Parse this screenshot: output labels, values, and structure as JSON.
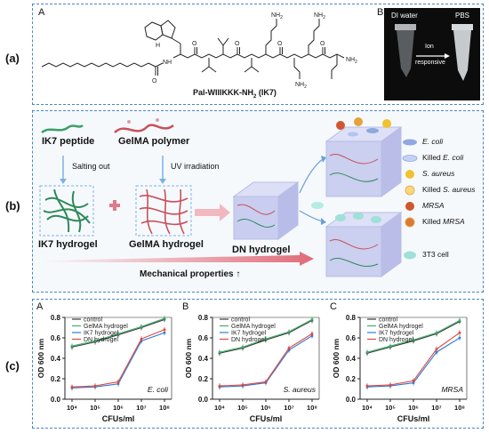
{
  "labels": {
    "a": "(a)",
    "b": "(b)",
    "c": "(c)",
    "A": "A",
    "B": "B",
    "C": "C"
  },
  "panel_a": {
    "sub_a": "A",
    "sub_b": "B",
    "peptide_name": "Pal-WIIIKKK-NH",
    "peptide_sub": "2",
    "peptide_code": " (IK7)",
    "photo_left": "DI water",
    "photo_right": "PBS",
    "arrow_top": "Ion",
    "arrow_bottom": "responsive",
    "atoms": {
      "nh": "NH",
      "h": "H",
      "n": "N",
      "o": "O",
      "nh2": "NH",
      "nh2_sub": "2"
    }
  },
  "panel_b": {
    "ik7_peptide": "IK7 peptide",
    "gelma_polymer": "GelMA polymer",
    "salting_out": "Salting out",
    "uv": "UV irradiation",
    "ik7_hydrogel": "IK7 hydrogel",
    "gelma_hydrogel": "GelMA hydrogel",
    "dn_hydrogel": "DN hydrogel",
    "mechanical": "Mechanical properties ↑",
    "legend": [
      {
        "label": "E. coli",
        "italic": true
      },
      {
        "prefix": "Killed ",
        "label": "E. coli",
        "italic": true
      },
      {
        "label": "S. aureus",
        "italic": true
      },
      {
        "prefix": "Killed ",
        "label": "S. aureus",
        "italic": true
      },
      {
        "label": "MRSA",
        "italic": true
      },
      {
        "prefix": "Killed ",
        "label": "MRSA",
        "italic": true
      },
      {
        "label": "3T3 cell",
        "italic": false
      }
    ],
    "colors": {
      "ecoli": "#8fa8e0",
      "saureus": "#f2c12e",
      "mrsa": "#d0562e",
      "cell": "#9fe0d8"
    }
  },
  "chart_data": [
    {
      "type": "line",
      "panel": "A",
      "annotation": "E. coli",
      "xlabel": "CFUs/ml",
      "ylabel": "OD 600 nm",
      "x": [
        "10⁴",
        "10⁵",
        "10⁶",
        "10⁷",
        "10⁸"
      ],
      "ylim": [
        0.0,
        0.8
      ],
      "yticks": [
        "0.0",
        "0.2",
        "0.4",
        "0.6",
        "0.8"
      ],
      "series": [
        {
          "name": "control",
          "color": "#3a3a3a",
          "values": [
            0.51,
            0.56,
            0.63,
            0.7,
            0.78
          ]
        },
        {
          "name": "GelMA hydrogel",
          "color": "#3fae6a",
          "values": [
            0.52,
            0.57,
            0.64,
            0.71,
            0.79
          ]
        },
        {
          "name": "IK7 hydrogel",
          "color": "#2f7ad9",
          "values": [
            0.11,
            0.12,
            0.15,
            0.57,
            0.65
          ]
        },
        {
          "name": "DN hydrogel",
          "color": "#e0473a",
          "values": [
            0.12,
            0.13,
            0.17,
            0.59,
            0.68
          ]
        }
      ]
    },
    {
      "type": "line",
      "panel": "B",
      "annotation": "S. aureus",
      "xlabel": "CFUs/ml",
      "ylabel": "OD 600 nm",
      "x": [
        "10⁴",
        "10⁵",
        "10⁶",
        "10⁷",
        "10⁸"
      ],
      "ylim": [
        0.0,
        0.8
      ],
      "yticks": [
        "0.0",
        "0.2",
        "0.4",
        "0.6",
        "0.8"
      ],
      "series": [
        {
          "name": "control",
          "color": "#3a3a3a",
          "values": [
            0.45,
            0.5,
            0.58,
            0.65,
            0.77
          ]
        },
        {
          "name": "GelMA hydrogel",
          "color": "#3fae6a",
          "values": [
            0.46,
            0.51,
            0.59,
            0.66,
            0.78
          ]
        },
        {
          "name": "IK7 hydrogel",
          "color": "#2f7ad9",
          "values": [
            0.12,
            0.13,
            0.16,
            0.48,
            0.62
          ]
        },
        {
          "name": "DN hydrogel",
          "color": "#e0473a",
          "values": [
            0.13,
            0.14,
            0.17,
            0.5,
            0.64
          ]
        }
      ]
    },
    {
      "type": "line",
      "panel": "C",
      "annotation": "MRSA",
      "xlabel": "CFUs/ml",
      "ylabel": "OD 600 nm",
      "x": [
        "10⁴",
        "10⁵",
        "10⁶",
        "10⁷",
        "10⁸"
      ],
      "ylim": [
        0.0,
        0.8
      ],
      "yticks": [
        "0.0",
        "0.2",
        "0.4",
        "0.6",
        "0.8"
      ],
      "series": [
        {
          "name": "control",
          "color": "#3a3a3a",
          "values": [
            0.45,
            0.51,
            0.57,
            0.64,
            0.76
          ]
        },
        {
          "name": "GelMA hydrogel",
          "color": "#3fae6a",
          "values": [
            0.46,
            0.52,
            0.58,
            0.65,
            0.77
          ]
        },
        {
          "name": "IK7 hydrogel",
          "color": "#2f7ad9",
          "values": [
            0.12,
            0.13,
            0.16,
            0.46,
            0.6
          ]
        },
        {
          "name": "DN hydrogel",
          "color": "#e0473a",
          "values": [
            0.13,
            0.14,
            0.18,
            0.49,
            0.65
          ]
        }
      ]
    }
  ]
}
